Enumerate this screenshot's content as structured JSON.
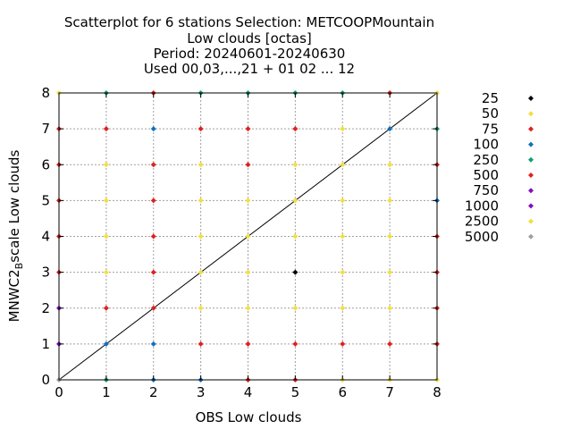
{
  "chart_data": {
    "type": "scatter",
    "title_lines": [
      "Scatterplot for    6 stations Selection: METCOOPMountain",
      "Low clouds [octas]",
      "Period: 20240601-20240630",
      "Used 00,03,...,21 + 01 02 ... 12"
    ],
    "xlabel": "OBS Low clouds",
    "ylabel_main": "MNWC2",
    "ylabel_sub": "B",
    "ylabel_rest": "scale Low clouds",
    "xlim": [
      0,
      8
    ],
    "ylim": [
      0,
      8
    ],
    "xticks": [
      "0",
      "1",
      "2",
      "3",
      "4",
      "5",
      "6",
      "7",
      "8"
    ],
    "yticks": [
      "0",
      "1",
      "2",
      "3",
      "4",
      "5",
      "6",
      "7",
      "8"
    ],
    "grid": true,
    "diagonal": true,
    "legend_position": "right",
    "legend": [
      {
        "label": "25",
        "color": "#000000"
      },
      {
        "label": "50",
        "color": "#f0e040"
      },
      {
        "label": "75",
        "color": "#e02020"
      },
      {
        "label": "100",
        "color": "#1070c0"
      },
      {
        "label": "250",
        "color": "#10a070"
      },
      {
        "label": "500",
        "color": "#e02020"
      },
      {
        "label": "750",
        "color": "#8010c0"
      },
      {
        "label": "1000",
        "color": "#8010c0"
      },
      {
        "label": "2500",
        "color": "#f0e040"
      },
      {
        "label": "5000",
        "color": "#a0a0a0"
      }
    ],
    "points": [
      {
        "x": 0,
        "y": 8,
        "c": "#f0e040"
      },
      {
        "x": 1,
        "y": 8,
        "c": "#10a070"
      },
      {
        "x": 2,
        "y": 8,
        "c": "#e02020"
      },
      {
        "x": 3,
        "y": 8,
        "c": "#10a070"
      },
      {
        "x": 4,
        "y": 8,
        "c": "#10a070"
      },
      {
        "x": 5,
        "y": 8,
        "c": "#10a070"
      },
      {
        "x": 6,
        "y": 8,
        "c": "#10a070"
      },
      {
        "x": 7,
        "y": 8,
        "c": "#e02020"
      },
      {
        "x": 8,
        "y": 8,
        "c": "#f0e040"
      },
      {
        "x": 0,
        "y": 7,
        "c": "#e02020"
      },
      {
        "x": 1,
        "y": 7,
        "c": "#e02020"
      },
      {
        "x": 2,
        "y": 7,
        "c": "#1070c0"
      },
      {
        "x": 3,
        "y": 7,
        "c": "#e02020"
      },
      {
        "x": 4,
        "y": 7,
        "c": "#e02020"
      },
      {
        "x": 5,
        "y": 7,
        "c": "#e02020"
      },
      {
        "x": 6,
        "y": 7,
        "c": "#f0e040"
      },
      {
        "x": 7,
        "y": 7,
        "c": "#1070c0"
      },
      {
        "x": 8,
        "y": 7,
        "c": "#10a070"
      },
      {
        "x": 0,
        "y": 6,
        "c": "#e02020"
      },
      {
        "x": 1,
        "y": 6,
        "c": "#f0e040"
      },
      {
        "x": 2,
        "y": 6,
        "c": "#e02020"
      },
      {
        "x": 3,
        "y": 6,
        "c": "#f0e040"
      },
      {
        "x": 4,
        "y": 6,
        "c": "#e02020"
      },
      {
        "x": 5,
        "y": 6,
        "c": "#f0e040"
      },
      {
        "x": 6,
        "y": 6,
        "c": "#f0e040"
      },
      {
        "x": 7,
        "y": 6,
        "c": "#f0e040"
      },
      {
        "x": 8,
        "y": 6,
        "c": "#e02020"
      },
      {
        "x": 0,
        "y": 5,
        "c": "#e02020"
      },
      {
        "x": 1,
        "y": 5,
        "c": "#f0e040"
      },
      {
        "x": 2,
        "y": 5,
        "c": "#e02020"
      },
      {
        "x": 3,
        "y": 5,
        "c": "#f0e040"
      },
      {
        "x": 4,
        "y": 5,
        "c": "#f0e040"
      },
      {
        "x": 5,
        "y": 5,
        "c": "#f0e040"
      },
      {
        "x": 6,
        "y": 5,
        "c": "#f0e040"
      },
      {
        "x": 7,
        "y": 5,
        "c": "#f0e040"
      },
      {
        "x": 8,
        "y": 5,
        "c": "#1070c0"
      },
      {
        "x": 0,
        "y": 4,
        "c": "#e02020"
      },
      {
        "x": 1,
        "y": 4,
        "c": "#f0e040"
      },
      {
        "x": 2,
        "y": 4,
        "c": "#e02020"
      },
      {
        "x": 3,
        "y": 4,
        "c": "#f0e040"
      },
      {
        "x": 4,
        "y": 4,
        "c": "#f0e040"
      },
      {
        "x": 5,
        "y": 4,
        "c": "#f0e040"
      },
      {
        "x": 6,
        "y": 4,
        "c": "#f0e040"
      },
      {
        "x": 7,
        "y": 4,
        "c": "#f0e040"
      },
      {
        "x": 8,
        "y": 4,
        "c": "#e02020"
      },
      {
        "x": 0,
        "y": 3,
        "c": "#e02020"
      },
      {
        "x": 1,
        "y": 3,
        "c": "#f0e040"
      },
      {
        "x": 2,
        "y": 3,
        "c": "#e02020"
      },
      {
        "x": 3,
        "y": 3,
        "c": "#f0e040"
      },
      {
        "x": 4,
        "y": 3,
        "c": "#f0e040"
      },
      {
        "x": 5,
        "y": 3,
        "c": "#000000"
      },
      {
        "x": 6,
        "y": 3,
        "c": "#f0e040"
      },
      {
        "x": 7,
        "y": 3,
        "c": "#f0e040"
      },
      {
        "x": 8,
        "y": 3,
        "c": "#e02020"
      },
      {
        "x": 0,
        "y": 2,
        "c": "#8010c0"
      },
      {
        "x": 1,
        "y": 2,
        "c": "#e02020"
      },
      {
        "x": 2,
        "y": 2,
        "c": "#e02020"
      },
      {
        "x": 3,
        "y": 2,
        "c": "#f0e040"
      },
      {
        "x": 4,
        "y": 2,
        "c": "#f0e040"
      },
      {
        "x": 5,
        "y": 2,
        "c": "#f0e040"
      },
      {
        "x": 6,
        "y": 2,
        "c": "#f0e040"
      },
      {
        "x": 7,
        "y": 2,
        "c": "#f0e040"
      },
      {
        "x": 8,
        "y": 2,
        "c": "#e02020"
      },
      {
        "x": 0,
        "y": 1,
        "c": "#8010c0"
      },
      {
        "x": 1,
        "y": 1,
        "c": "#1070c0"
      },
      {
        "x": 2,
        "y": 1,
        "c": "#1070c0"
      },
      {
        "x": 3,
        "y": 1,
        "c": "#e02020"
      },
      {
        "x": 4,
        "y": 1,
        "c": "#e02020"
      },
      {
        "x": 5,
        "y": 1,
        "c": "#e02020"
      },
      {
        "x": 6,
        "y": 1,
        "c": "#e02020"
      },
      {
        "x": 7,
        "y": 1,
        "c": "#e02020"
      },
      {
        "x": 8,
        "y": 1,
        "c": "#e02020"
      },
      {
        "x": 0,
        "y": 0,
        "c": "#a0a0a0"
      },
      {
        "x": 1,
        "y": 0,
        "c": "#10a070"
      },
      {
        "x": 2,
        "y": 0,
        "c": "#1070c0"
      },
      {
        "x": 3,
        "y": 0,
        "c": "#1070c0"
      },
      {
        "x": 4,
        "y": 0,
        "c": "#e02020"
      },
      {
        "x": 5,
        "y": 0,
        "c": "#e02020"
      },
      {
        "x": 6,
        "y": 0,
        "c": "#f0e040"
      },
      {
        "x": 7,
        "y": 0,
        "c": "#f0e040"
      },
      {
        "x": 8,
        "y": 0,
        "c": "#f0e040"
      }
    ]
  }
}
